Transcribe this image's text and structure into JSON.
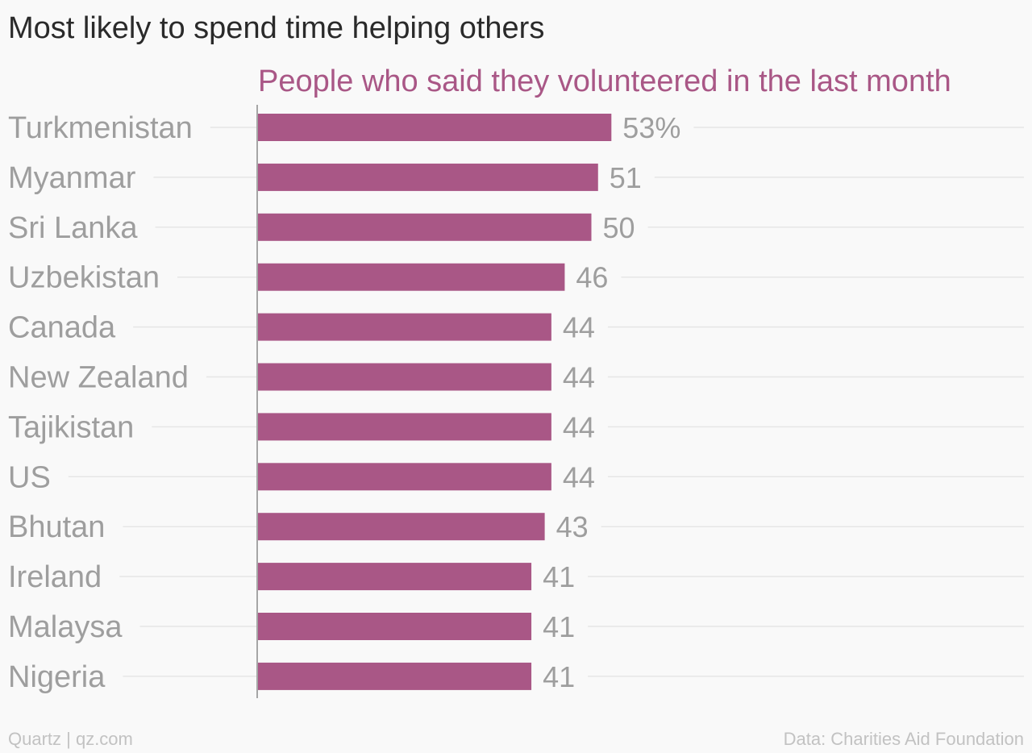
{
  "colors": {
    "bar": "#a95786",
    "series_label": "#a95786",
    "title": "#2a2a2a",
    "category_text": "#9e9e9e",
    "value_text": "#9e9e9e",
    "gridline": "#e6e6e6",
    "axis": "#8a8a8a",
    "footer": "#c2c2c2",
    "background": "#f9f9f9"
  },
  "footer": {
    "source_left": "Quartz | qz.com",
    "source_right": "Data: Charities Aid Foundation"
  },
  "chart_data": {
    "type": "bar",
    "orientation": "horizontal",
    "title": "Most likely to spend time helping others",
    "xlabel": "",
    "ylabel": "",
    "grid": true,
    "xlim": [
      0,
      100
    ],
    "categories": [
      "Turkmenistan",
      "Myanmar",
      "Sri Lanka",
      "Uzbekistan",
      "Canada",
      "New Zealand",
      "Tajikistan",
      "US",
      "Bhutan",
      "Ireland",
      "Malaysa",
      "Nigeria"
    ],
    "series": [
      {
        "name": "People who said they volunteered in the last month",
        "values": [
          53,
          51,
          50,
          46,
          44,
          44,
          44,
          44,
          43,
          41,
          41,
          41
        ]
      }
    ],
    "data_labels": [
      "53%",
      "51",
      "50",
      "46",
      "44",
      "44",
      "44",
      "44",
      "43",
      "41",
      "41",
      "41"
    ]
  }
}
